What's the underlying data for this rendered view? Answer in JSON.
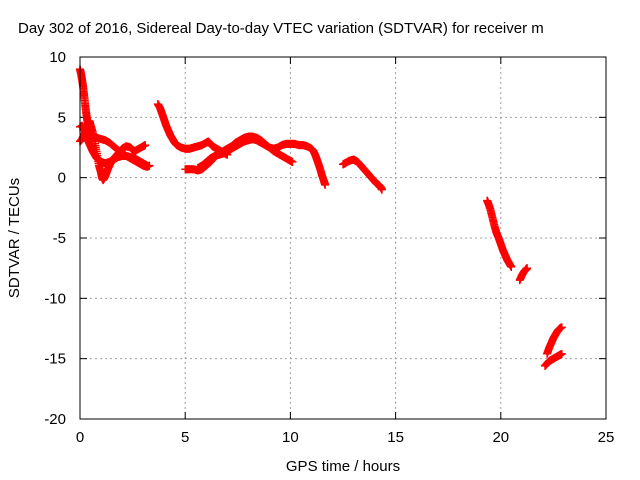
{
  "chart_data": {
    "type": "scatter",
    "title": "Day 302 of 2016, Sidereal Day-to-day VTEC variation (SDTVAR) for receiver m",
    "xlabel": "GPS time / hours",
    "ylabel": "SDTVAR / TECUs",
    "xlim": [
      0,
      25
    ],
    "ylim": [
      -20,
      10
    ],
    "xticks": [
      0,
      5,
      10,
      15,
      20,
      25
    ],
    "yticks": [
      -20,
      -15,
      -10,
      -5,
      0,
      5,
      10
    ],
    "grid": true,
    "marker": "plus",
    "color": "#ff0000",
    "series": [
      {
        "tracks": [
          [
            [
              0.0,
              9.0
            ],
            [
              0.05,
              8.6
            ],
            [
              0.1,
              8.1
            ],
            [
              0.15,
              7.5
            ],
            [
              0.2,
              6.8
            ],
            [
              0.25,
              6.0
            ],
            [
              0.3,
              5.3
            ],
            [
              0.35,
              4.7
            ],
            [
              0.4,
              4.2
            ],
            [
              0.45,
              3.8
            ],
            [
              0.5,
              3.6
            ],
            [
              0.55,
              3.5
            ],
            [
              0.6,
              3.4
            ],
            [
              0.7,
              3.3
            ],
            [
              0.8,
              3.3
            ],
            [
              1.0,
              3.2
            ],
            [
              1.2,
              3.1
            ],
            [
              1.4,
              2.9
            ],
            [
              1.6,
              2.6
            ],
            [
              1.8,
              2.3
            ],
            [
              2.0,
              2.0
            ],
            [
              2.2,
              1.8
            ],
            [
              2.4,
              1.6
            ],
            [
              2.6,
              1.4
            ],
            [
              2.8,
              1.2
            ],
            [
              3.0,
              1.0
            ],
            [
              3.2,
              0.9
            ],
            [
              3.3,
              1.0
            ]
          ],
          [
            [
              0.0,
              3.0
            ],
            [
              0.1,
              3.2
            ],
            [
              0.2,
              3.6
            ],
            [
              0.3,
              4.0
            ],
            [
              0.4,
              4.5
            ],
            [
              0.45,
              4.7
            ],
            [
              0.5,
              4.4
            ],
            [
              0.6,
              3.8
            ],
            [
              0.7,
              3.0
            ],
            [
              0.8,
              2.0
            ],
            [
              0.9,
              1.0
            ],
            [
              1.0,
              0.4
            ],
            [
              1.05,
              0.0
            ],
            [
              1.1,
              -0.2
            ],
            [
              1.2,
              0.1
            ],
            [
              1.3,
              0.6
            ],
            [
              1.4,
              1.0
            ],
            [
              1.6,
              1.6
            ],
            [
              1.8,
              2.0
            ],
            [
              2.0,
              2.4
            ],
            [
              2.2,
              2.6
            ],
            [
              2.4,
              2.5
            ],
            [
              2.5,
              2.3
            ],
            [
              2.6,
              2.2
            ],
            [
              2.8,
              2.4
            ],
            [
              3.0,
              2.6
            ],
            [
              3.1,
              2.7
            ]
          ],
          [
            [
              0.0,
              4.2
            ],
            [
              0.1,
              4.3
            ],
            [
              0.2,
              4.0
            ],
            [
              0.3,
              3.6
            ],
            [
              0.4,
              3.0
            ],
            [
              0.5,
              2.6
            ],
            [
              0.6,
              2.2
            ],
            [
              0.7,
              1.9
            ],
            [
              0.8,
              1.6
            ],
            [
              1.0,
              1.3
            ],
            [
              1.2,
              1.2
            ],
            [
              1.4,
              1.3
            ],
            [
              1.6,
              1.5
            ],
            [
              1.8,
              1.7
            ],
            [
              2.0,
              1.8
            ],
            [
              2.2,
              1.8
            ],
            [
              2.4,
              1.7
            ],
            [
              2.6,
              1.6
            ],
            [
              2.8,
              1.4
            ],
            [
              3.0,
              1.2
            ],
            [
              3.2,
              1.0
            ]
          ],
          [
            [
              3.7,
              6.1
            ],
            [
              3.8,
              5.8
            ],
            [
              3.9,
              5.3
            ],
            [
              4.0,
              4.8
            ],
            [
              4.1,
              4.3
            ],
            [
              4.2,
              3.9
            ],
            [
              4.3,
              3.5
            ],
            [
              4.4,
              3.2
            ],
            [
              4.5,
              2.9
            ],
            [
              4.6,
              2.7
            ],
            [
              4.8,
              2.5
            ],
            [
              5.0,
              2.4
            ],
            [
              5.2,
              2.4
            ],
            [
              5.4,
              2.5
            ],
            [
              5.6,
              2.6
            ],
            [
              5.8,
              2.7
            ],
            [
              6.0,
              2.9
            ],
            [
              6.1,
              3.0
            ],
            [
              6.2,
              2.8
            ],
            [
              6.3,
              2.6
            ],
            [
              6.5,
              2.4
            ],
            [
              6.7,
              2.2
            ],
            [
              6.9,
              2.0
            ],
            [
              7.0,
              1.9
            ]
          ],
          [
            [
              5.0,
              0.7
            ],
            [
              5.2,
              0.7
            ],
            [
              5.4,
              0.7
            ],
            [
              5.6,
              0.6
            ],
            [
              5.8,
              0.7
            ],
            [
              6.0,
              1.0
            ],
            [
              6.2,
              1.3
            ],
            [
              6.4,
              1.7
            ],
            [
              6.6,
              2.0
            ],
            [
              6.8,
              2.2
            ],
            [
              7.0,
              2.4
            ],
            [
              7.2,
              2.6
            ],
            [
              7.4,
              2.9
            ],
            [
              7.6,
              3.1
            ],
            [
              7.8,
              3.3
            ],
            [
              8.0,
              3.4
            ],
            [
              8.2,
              3.4
            ],
            [
              8.4,
              3.3
            ],
            [
              8.6,
              3.1
            ],
            [
              8.8,
              2.8
            ],
            [
              9.0,
              2.5
            ],
            [
              9.2,
              2.2
            ],
            [
              9.4,
              2.0
            ],
            [
              9.6,
              1.8
            ],
            [
              9.8,
              1.6
            ],
            [
              10.0,
              1.4
            ],
            [
              10.1,
              1.3
            ]
          ],
          [
            [
              5.6,
              0.8
            ],
            [
              5.8,
              1.0
            ],
            [
              6.0,
              1.3
            ],
            [
              6.2,
              1.6
            ],
            [
              6.4,
              1.8
            ],
            [
              6.6,
              1.9
            ],
            [
              6.8,
              2.0
            ],
            [
              7.0,
              2.2
            ],
            [
              7.2,
              2.4
            ],
            [
              7.4,
              2.6
            ],
            [
              7.6,
              2.8
            ],
            [
              7.8,
              3.0
            ],
            [
              8.0,
              3.1
            ],
            [
              8.2,
              3.2
            ],
            [
              8.4,
              3.1
            ],
            [
              8.6,
              2.9
            ],
            [
              8.8,
              2.7
            ],
            [
              9.0,
              2.5
            ],
            [
              9.2,
              2.4
            ],
            [
              9.4,
              2.5
            ],
            [
              9.6,
              2.7
            ],
            [
              9.8,
              2.8
            ],
            [
              10.0,
              2.8
            ],
            [
              10.2,
              2.8
            ],
            [
              10.4,
              2.7
            ],
            [
              10.6,
              2.7
            ],
            [
              10.8,
              2.6
            ],
            [
              11.0,
              2.4
            ],
            [
              11.1,
              2.2
            ],
            [
              11.2,
              1.8
            ],
            [
              11.3,
              1.3
            ],
            [
              11.4,
              0.8
            ],
            [
              11.5,
              0.2
            ],
            [
              11.6,
              -0.3
            ],
            [
              11.65,
              -0.6
            ]
          ],
          [
            [
              12.5,
              1.1
            ],
            [
              12.6,
              1.2
            ],
            [
              12.8,
              1.4
            ],
            [
              13.0,
              1.5
            ],
            [
              13.1,
              1.4
            ],
            [
              13.2,
              1.3
            ],
            [
              13.3,
              1.1
            ],
            [
              13.4,
              0.9
            ],
            [
              13.5,
              0.7
            ],
            [
              13.6,
              0.5
            ],
            [
              13.7,
              0.3
            ],
            [
              13.8,
              0.1
            ],
            [
              13.9,
              -0.1
            ],
            [
              14.0,
              -0.3
            ],
            [
              14.1,
              -0.5
            ],
            [
              14.2,
              -0.6
            ],
            [
              14.3,
              -0.8
            ],
            [
              14.35,
              -1.0
            ]
          ],
          [
            [
              19.35,
              -1.9
            ],
            [
              19.4,
              -2.1
            ],
            [
              19.5,
              -2.6
            ],
            [
              19.6,
              -3.3
            ],
            [
              19.7,
              -4.0
            ],
            [
              19.8,
              -4.6
            ],
            [
              19.9,
              -5.0
            ],
            [
              20.0,
              -5.5
            ],
            [
              20.1,
              -6.0
            ],
            [
              20.2,
              -6.4
            ],
            [
              20.3,
              -6.8
            ],
            [
              20.4,
              -7.1
            ],
            [
              20.5,
              -7.4
            ]
          ],
          [
            [
              20.9,
              -8.5
            ],
            [
              21.0,
              -8.1
            ],
            [
              21.1,
              -7.8
            ],
            [
              21.2,
              -7.6
            ],
            [
              21.25,
              -7.5
            ]
          ],
          [
            [
              22.1,
              -15.6
            ],
            [
              22.2,
              -15.4
            ],
            [
              22.3,
              -15.2
            ],
            [
              22.4,
              -15.1
            ],
            [
              22.5,
              -15.0
            ],
            [
              22.6,
              -14.9
            ],
            [
              22.7,
              -14.8
            ],
            [
              22.8,
              -14.7
            ],
            [
              22.9,
              -14.6
            ]
          ],
          [
            [
              22.2,
              -14.6
            ],
            [
              22.3,
              -14.1
            ],
            [
              22.4,
              -13.7
            ],
            [
              22.5,
              -13.3
            ],
            [
              22.6,
              -13.0
            ],
            [
              22.7,
              -12.7
            ],
            [
              22.8,
              -12.5
            ],
            [
              22.9,
              -12.4
            ]
          ]
        ]
      }
    ]
  }
}
